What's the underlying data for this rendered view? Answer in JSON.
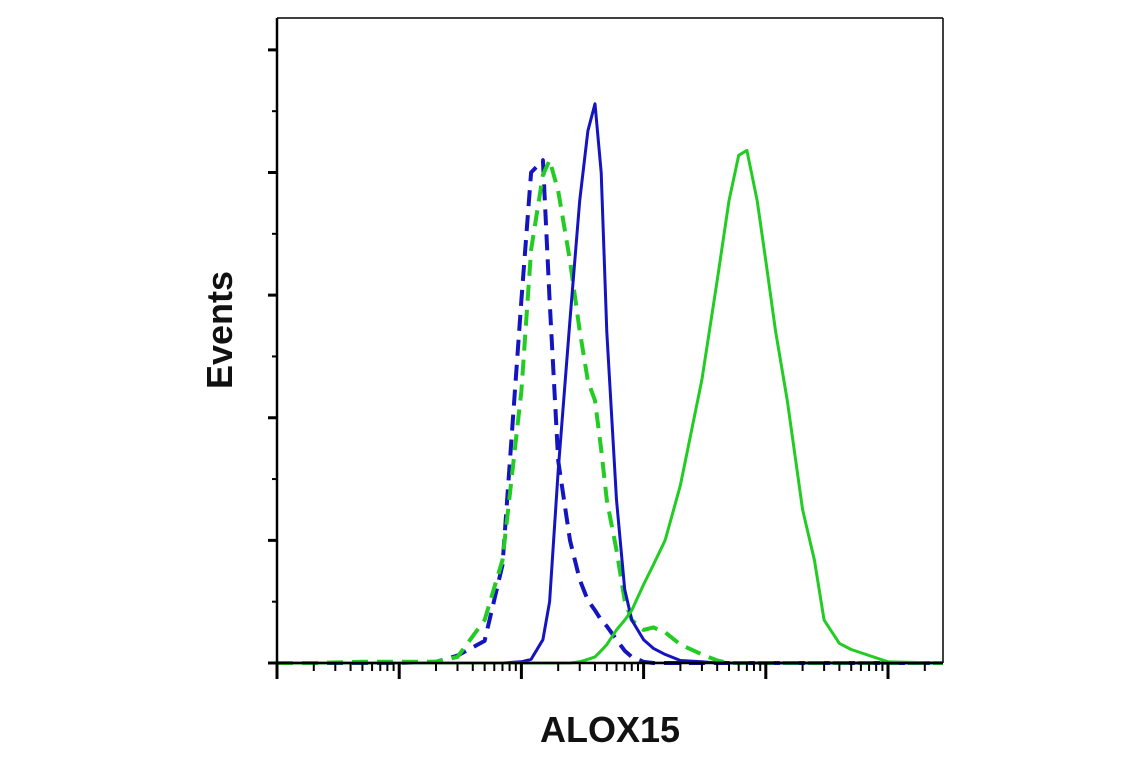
{
  "chart_data": {
    "type": "line",
    "xlabel": "ALOX15",
    "ylabel": "Events",
    "xscale": "log",
    "xlim": [
      1,
      281838
    ],
    "xticks": [
      1,
      10,
      100,
      1000,
      10000,
      100000
    ],
    "xminor_ticks": [
      2,
      3,
      4,
      5,
      6,
      7,
      8,
      9,
      20,
      30,
      40,
      50,
      60,
      70,
      80,
      90,
      200,
      300,
      400,
      500,
      600,
      700,
      800,
      900,
      2000,
      3000,
      4000,
      5000,
      6000,
      7000,
      8000,
      9000,
      20000,
      30000,
      40000,
      50000,
      60000,
      70000,
      80000,
      90000,
      200000
    ],
    "ylim": [
      0,
      5.26
    ],
    "yticks": [
      0,
      1,
      2,
      3,
      4,
      5
    ],
    "yminor_ticks": [
      0.5,
      1.5,
      2.5,
      3.5,
      4.5
    ],
    "x": [
      1,
      2,
      5,
      10,
      20,
      30,
      50,
      70,
      100,
      120,
      150,
      170,
      200,
      250,
      300,
      350,
      400,
      450,
      500,
      600,
      700,
      800,
      1000,
      1200,
      1500,
      2000,
      3000,
      4000,
      5000,
      6000,
      7000,
      8500,
      10000,
      12000,
      15000,
      20000,
      25000,
      30000,
      40000,
      50000,
      100000,
      281838
    ],
    "series": [
      {
        "color": "#1414c0",
        "dashed": true,
        "values": [
          0,
          0,
          0,
          0,
          0.01,
          0.06,
          0.18,
          0.8,
          2.96,
          4.0,
          4.1,
          2.96,
          1.65,
          1.0,
          0.68,
          0.51,
          0.43,
          0.35,
          0.3,
          0.19,
          0.1,
          0.05,
          0.01,
          0,
          0,
          0,
          0,
          0,
          0,
          0,
          0,
          0,
          0,
          0,
          0,
          0,
          0,
          0,
          0,
          0,
          0,
          0
        ]
      },
      {
        "color": "#22cc22",
        "dashed": true,
        "values": [
          0,
          0,
          0.01,
          0.01,
          0.01,
          0.05,
          0.35,
          0.84,
          2.22,
          3.37,
          3.98,
          4.1,
          3.85,
          3.28,
          2.71,
          2.3,
          2.14,
          1.74,
          1.33,
          0.92,
          0.51,
          0.35,
          0.27,
          0.29,
          0.25,
          0.15,
          0.07,
          0.02,
          0,
          0,
          0,
          0,
          0,
          0,
          0,
          0,
          0,
          0,
          0,
          0,
          0,
          0
        ]
      },
      {
        "color": "#1414c0",
        "dashed": false,
        "values": [
          0,
          0,
          0,
          0,
          0,
          0,
          0,
          0,
          0.01,
          0.03,
          0.19,
          0.5,
          1.57,
          2.8,
          3.77,
          4.34,
          4.56,
          4.0,
          2.7,
          1.33,
          0.6,
          0.35,
          0.19,
          0.12,
          0.07,
          0.02,
          0.01,
          0,
          0,
          0,
          0,
          0,
          0,
          0,
          0,
          0,
          0,
          0,
          0,
          0,
          0,
          0
        ]
      },
      {
        "color": "#22cc22",
        "dashed": false,
        "values": [
          0,
          0,
          0,
          0,
          0,
          0,
          0,
          0,
          0,
          0,
          0,
          0,
          0,
          0,
          0.01,
          0.03,
          0.05,
          0.1,
          0.15,
          0.27,
          0.35,
          0.43,
          0.64,
          0.8,
          1.0,
          1.45,
          2.31,
          3.12,
          3.77,
          4.14,
          4.18,
          3.77,
          3.28,
          2.71,
          2.14,
          1.25,
          0.84,
          0.35,
          0.16,
          0.11,
          0.01,
          0
        ]
      }
    ]
  }
}
